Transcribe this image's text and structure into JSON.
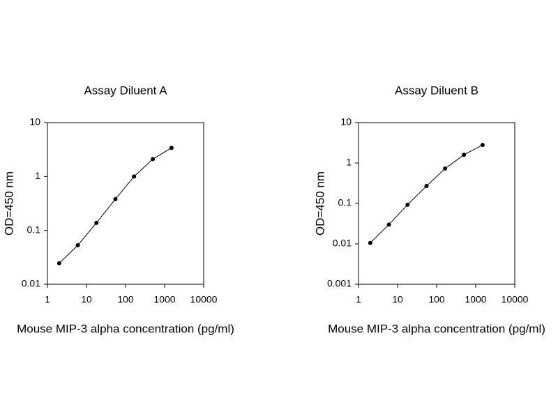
{
  "chart_data": [
    {
      "type": "line",
      "title": "Assay Diluent A",
      "x_label": "Mouse MIP-3 alpha concentration (pg/ml)",
      "y_label": "OD=450 nm",
      "x": [
        2,
        6,
        18,
        55,
        165,
        500,
        1500
      ],
      "values": [
        0.0245,
        0.053,
        0.138,
        0.38,
        1.0,
        2.1,
        3.4
      ],
      "color": "#000000",
      "xscale": "log",
      "yscale": "log",
      "xlim": [
        1,
        10000
      ],
      "ylim": [
        0.01,
        10
      ],
      "xticks": [
        1,
        10,
        100,
        1000,
        10000
      ],
      "yticks": [
        0.01,
        0.1,
        1,
        10
      ],
      "grid": false
    },
    {
      "type": "line",
      "title": "Assay Diluent B",
      "x_label": "Mouse MIP-3 alpha concentration (pg/ml)",
      "y_label": "OD=450 nm",
      "x": [
        2,
        6,
        18,
        55,
        165,
        500,
        1500
      ],
      "values": [
        0.0105,
        0.03,
        0.093,
        0.27,
        0.73,
        1.6,
        2.8
      ],
      "color": "#000000",
      "xscale": "log",
      "yscale": "log",
      "xlim": [
        1,
        10000
      ],
      "ylim": [
        0.001,
        10
      ],
      "xticks": [
        1,
        10,
        100,
        1000,
        10000
      ],
      "yticks": [
        0.001,
        0.01,
        0.1,
        1,
        10
      ],
      "grid": false
    }
  ]
}
